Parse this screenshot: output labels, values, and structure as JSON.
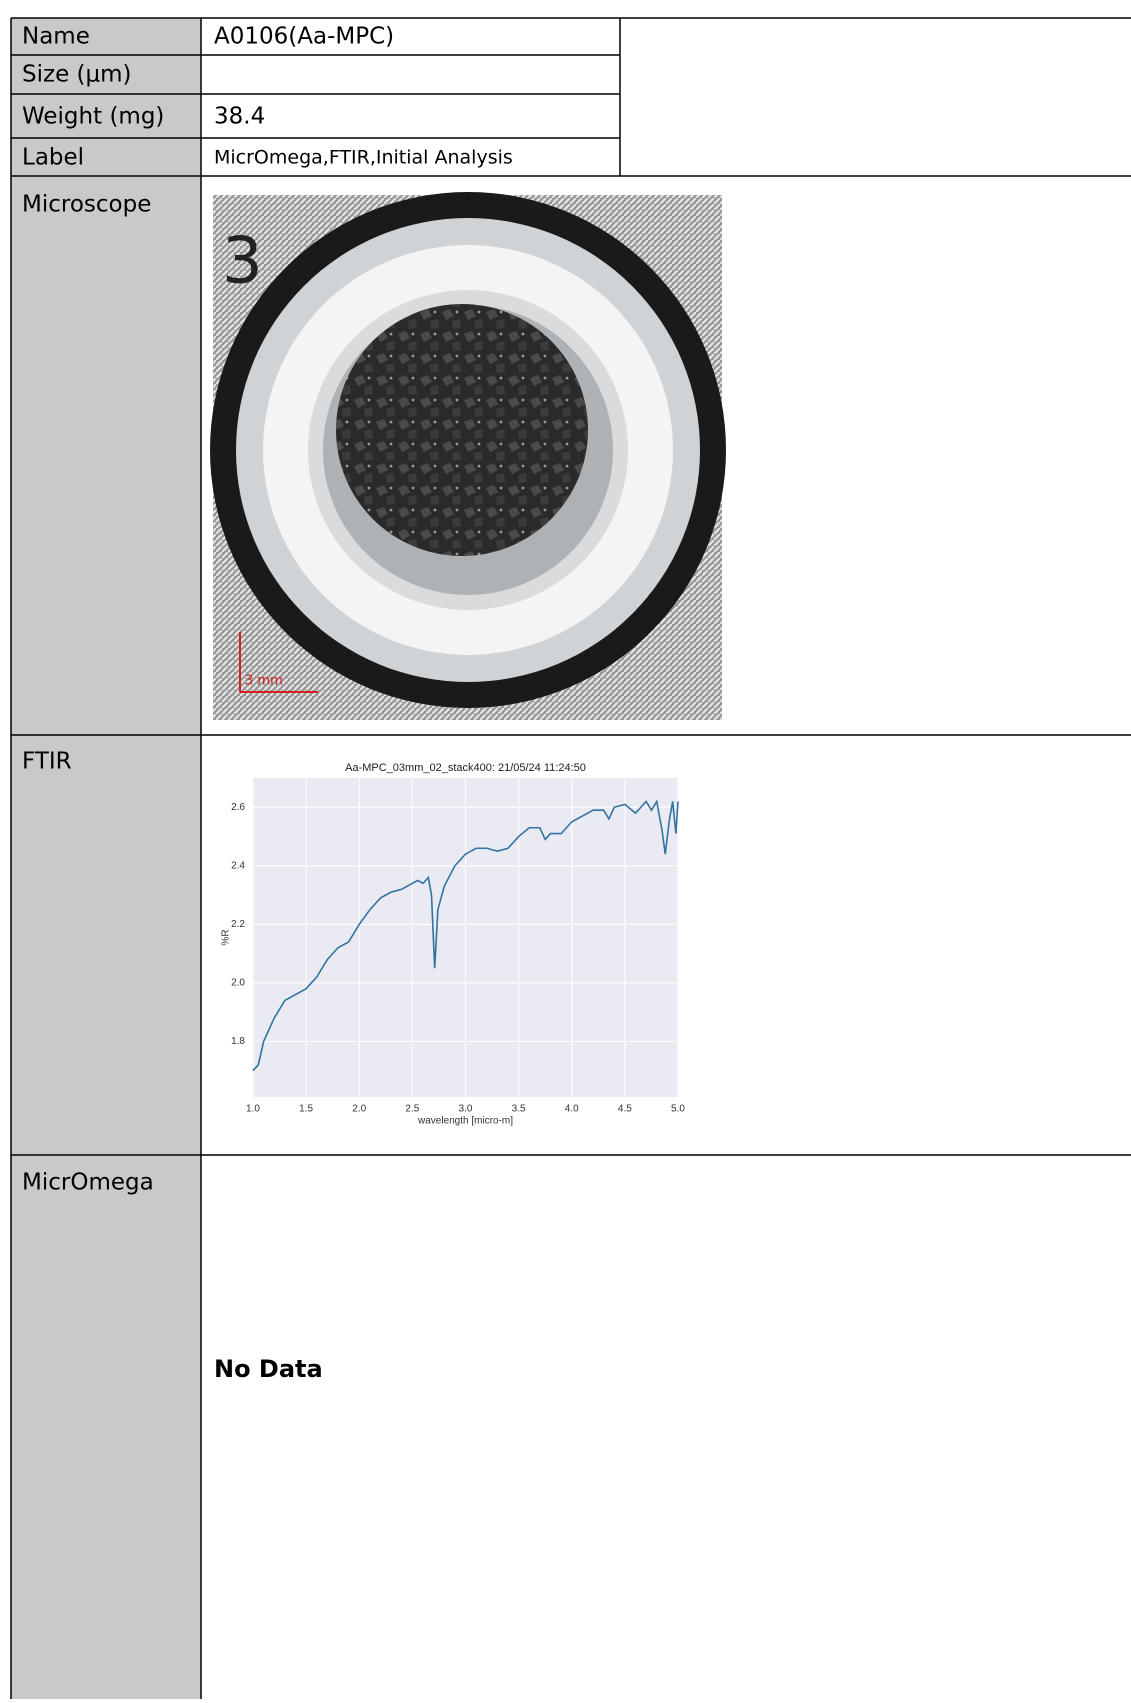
{
  "table": {
    "rows": [
      {
        "label": "Name",
        "value": "A0106(Aa-MPC)"
      },
      {
        "label": "Size (μm)"
      },
      {
        "label": "Weight (mg)",
        "value": "38.4"
      },
      {
        "label": "Label",
        "value": "MicrOmega,FTIR,Initial Analysis"
      },
      {
        "label": "Microscope",
        "image_labels": [
          "3",
          "3 mm"
        ]
      },
      {
        "label": "FTIR"
      },
      {
        "label": "MicrOmega",
        "value": "No Data"
      }
    ]
  },
  "chart_data": {
    "type": "line",
    "title": "Aa-MPC_03mm_02_stack400:  21/05/24 11:24:50",
    "xlabel": "wavelength [micro-m]",
    "ylabel": "%R",
    "x": [
      1.0,
      1.05,
      1.1,
      1.2,
      1.3,
      1.4,
      1.5,
      1.6,
      1.7,
      1.8,
      1.9,
      2.0,
      2.1,
      2.2,
      2.3,
      2.4,
      2.5,
      2.55,
      2.6,
      2.65,
      2.68,
      2.71,
      2.74,
      2.8,
      2.9,
      3.0,
      3.1,
      3.2,
      3.3,
      3.4,
      3.5,
      3.6,
      3.7,
      3.75,
      3.8,
      3.9,
      4.0,
      4.1,
      4.2,
      4.3,
      4.35,
      4.4,
      4.5,
      4.6,
      4.7,
      4.75,
      4.8,
      4.85,
      4.88,
      4.92,
      4.95,
      4.98,
      5.0
    ],
    "series": [
      {
        "name": "%R",
        "color": "#3274a1",
        "values": [
          1.7,
          1.72,
          1.8,
          1.88,
          1.94,
          1.96,
          1.98,
          2.02,
          2.08,
          2.12,
          2.14,
          2.2,
          2.25,
          2.29,
          2.31,
          2.32,
          2.34,
          2.35,
          2.34,
          2.36,
          2.3,
          2.05,
          2.25,
          2.33,
          2.4,
          2.44,
          2.46,
          2.46,
          2.45,
          2.46,
          2.5,
          2.53,
          2.53,
          2.49,
          2.51,
          2.51,
          2.55,
          2.57,
          2.59,
          2.59,
          2.56,
          2.6,
          2.61,
          2.58,
          2.62,
          2.59,
          2.62,
          2.52,
          2.44,
          2.56,
          2.62,
          2.51,
          2.62
        ]
      }
    ],
    "xlim": [
      1,
      5
    ],
    "xticks": [
      {
        "value": 1,
        "label": "1.0"
      },
      1.5,
      {
        "value": 2,
        "label": "2.0"
      },
      2.5,
      {
        "value": 3,
        "label": "3.0"
      },
      3.5,
      {
        "value": 4,
        "label": "4.0"
      },
      4.5,
      {
        "value": 5,
        "label": "5.0"
      }
    ],
    "ylim": [
      1.61,
      2.7
    ],
    "yticks": [
      1.8,
      {
        "value": 2,
        "label": "2.0"
      },
      2.2,
      2.4,
      2.6
    ],
    "grid": true
  }
}
